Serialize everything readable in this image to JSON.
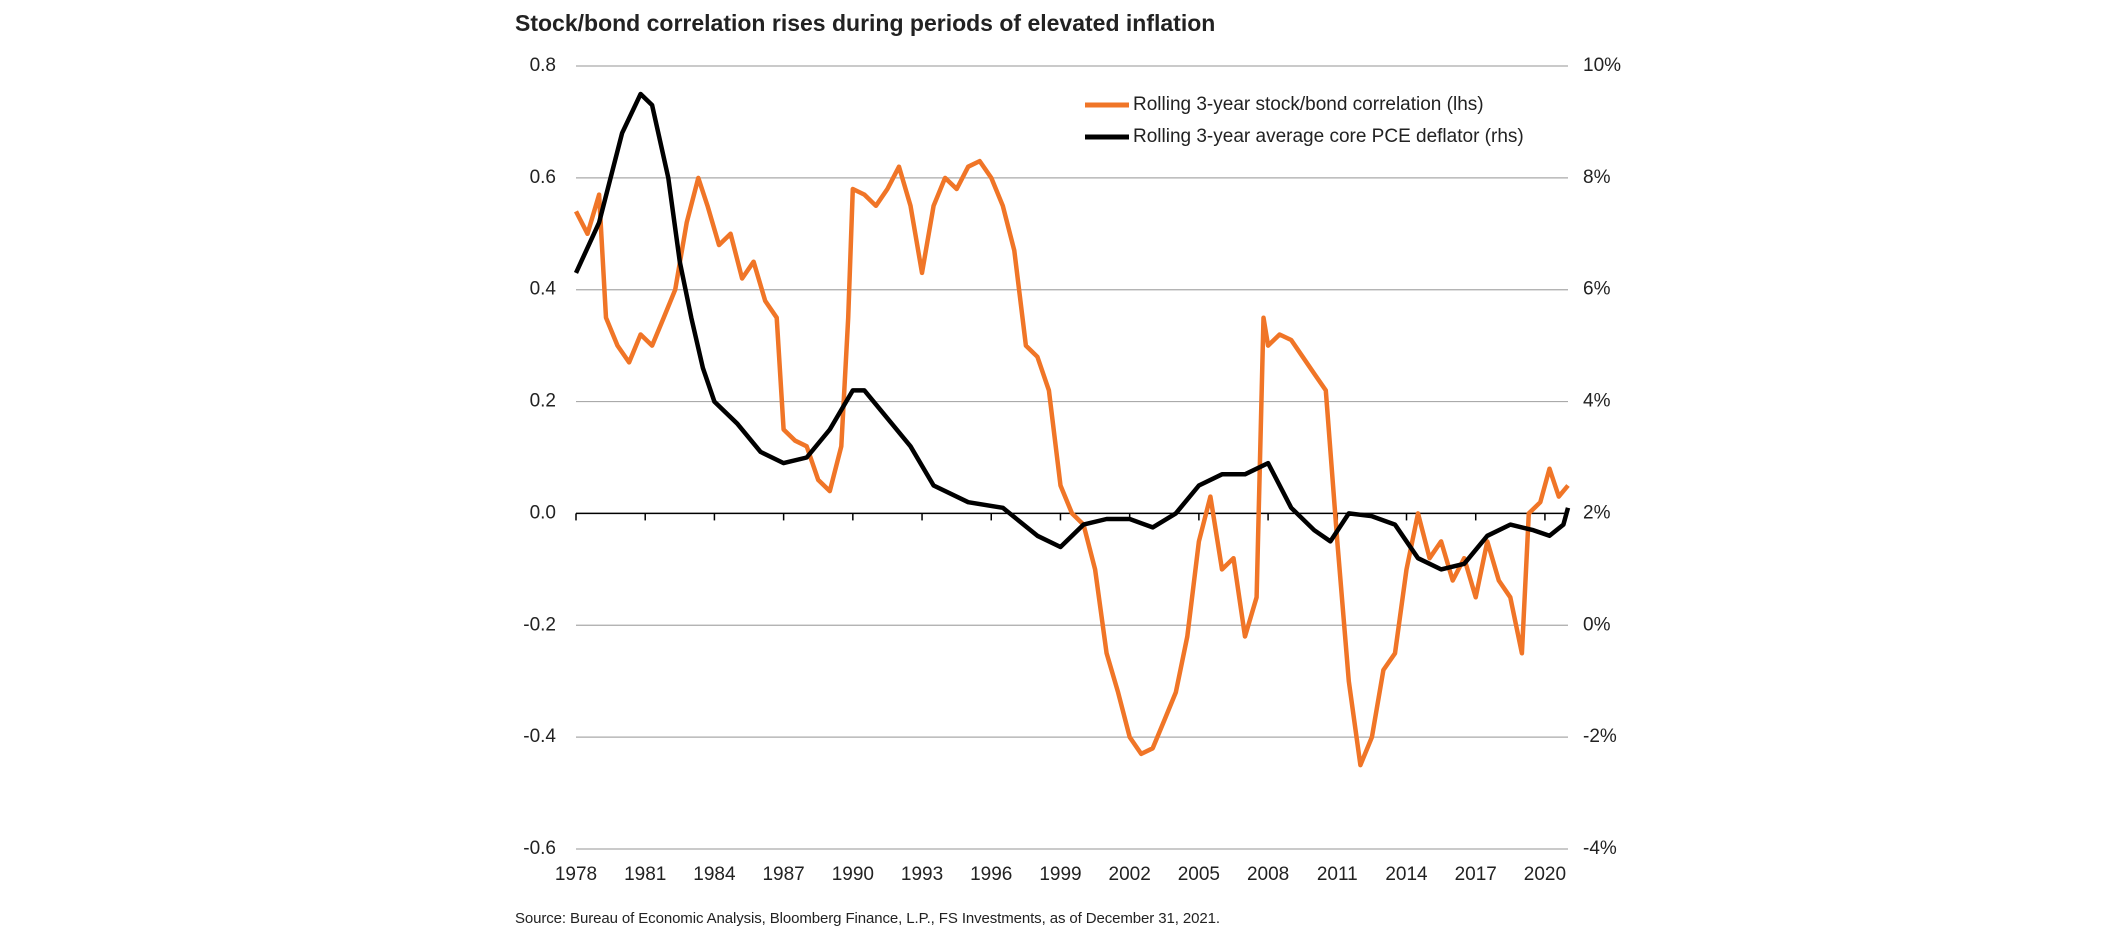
{
  "chart_data": {
    "type": "line",
    "title": "Stock/bond correlation rises during periods of elevated inflation",
    "source": "Source: Bureau of Economic Analysis, Bloomberg Finance, L.P., FS Investments, as of December 31, 2021.",
    "xlim": [
      1978,
      2021
    ],
    "xticks": [
      1978,
      1981,
      1984,
      1987,
      1990,
      1993,
      1996,
      1999,
      2002,
      2005,
      2008,
      2011,
      2014,
      2017,
      2020
    ],
    "ylim": [
      -0.6,
      0.8
    ],
    "yticks": [
      {
        "value": -0.6,
        "label": "-0.6"
      },
      {
        "value": -0.4,
        "label": "-0.4"
      },
      {
        "value": -0.2,
        "label": "-0.2"
      },
      {
        "value": 0,
        "label": "0.0"
      },
      {
        "value": 0.2,
        "label": "0.2"
      },
      {
        "value": 0.4,
        "label": "0.4"
      },
      {
        "value": 0.6,
        "label": "0.6"
      },
      {
        "value": 0.8,
        "label": "0.8"
      }
    ],
    "y2lim": [
      -4,
      10
    ],
    "y2ticks": [
      {
        "value": -4,
        "label": "-4%"
      },
      {
        "value": -2,
        "label": "-2%"
      },
      {
        "value": 0,
        "label": "0%"
      },
      {
        "value": 2,
        "label": "2%"
      },
      {
        "value": 4,
        "label": "4%"
      },
      {
        "value": 6,
        "label": "6%"
      },
      {
        "value": 8,
        "label": "8%"
      },
      {
        "value": 10,
        "label": "10%"
      }
    ],
    "grid": true,
    "legend": "upper right",
    "series": [
      {
        "name": "Rolling 3-year stock/bond correlation (lhs)",
        "color": "#f07527",
        "x": [
          1978.0,
          1978.5,
          1979.0,
          1979.3,
          1979.8,
          1980.3,
          1980.8,
          1981.3,
          1981.8,
          1982.3,
          1982.8,
          1983.3,
          1983.7,
          1984.2,
          1984.7,
          1985.2,
          1985.7,
          1986.2,
          1986.7,
          1987.0,
          1987.5,
          1988.0,
          1988.5,
          1989.0,
          1989.5,
          1989.8,
          1990.0,
          1990.5,
          1991.0,
          1991.5,
          1992.0,
          1992.5,
          1993.0,
          1993.5,
          1994.0,
          1994.5,
          1995.0,
          1995.5,
          1996.0,
          1996.5,
          1997.0,
          1997.5,
          1998.0,
          1998.5,
          1999.0,
          1999.5,
          2000.0,
          2000.5,
          2001.0,
          2001.5,
          2002.0,
          2002.5,
          2003.0,
          2003.5,
          2004.0,
          2004.5,
          2005.0,
          2005.5,
          2006.0,
          2006.5,
          2007.0,
          2007.5,
          2007.8,
          2008.0,
          2008.5,
          2009.0,
          2009.5,
          2010.0,
          2010.5,
          2011.0,
          2011.5,
          2012.0,
          2012.5,
          2013.0,
          2013.5,
          2014.0,
          2014.5,
          2015.0,
          2015.5,
          2016.0,
          2016.5,
          2017.0,
          2017.5,
          2018.0,
          2018.5,
          2019.0,
          2019.3,
          2019.8,
          2020.2,
          2020.6,
          2021.0
        ],
        "values": [
          0.54,
          0.5,
          0.57,
          0.35,
          0.3,
          0.27,
          0.32,
          0.3,
          0.35,
          0.4,
          0.52,
          0.6,
          0.55,
          0.48,
          0.5,
          0.42,
          0.45,
          0.38,
          0.35,
          0.15,
          0.13,
          0.12,
          0.06,
          0.04,
          0.12,
          0.35,
          0.58,
          0.57,
          0.55,
          0.58,
          0.62,
          0.55,
          0.43,
          0.55,
          0.6,
          0.58,
          0.62,
          0.63,
          0.6,
          0.55,
          0.47,
          0.3,
          0.28,
          0.22,
          0.05,
          0.0,
          -0.02,
          -0.1,
          -0.25,
          -0.32,
          -0.4,
          -0.43,
          -0.42,
          -0.37,
          -0.32,
          -0.22,
          -0.05,
          0.03,
          -0.1,
          -0.08,
          -0.22,
          -0.15,
          0.35,
          0.3,
          0.32,
          0.31,
          0.28,
          0.25,
          0.22,
          -0.05,
          -0.3,
          -0.45,
          -0.4,
          -0.28,
          -0.25,
          -0.1,
          0.0,
          -0.08,
          -0.05,
          -0.12,
          -0.08,
          -0.15,
          -0.05,
          -0.12,
          -0.15,
          -0.25,
          0.0,
          0.02,
          0.08,
          0.03,
          0.05
        ]
      },
      {
        "name": "Rolling 3-year average core PCE deflator (rhs)",
        "color": "#000000",
        "axis": "y2",
        "x": [
          1978.0,
          1979.0,
          1980.0,
          1980.8,
          1981.3,
          1982.0,
          1982.5,
          1983.0,
          1983.5,
          1984.0,
          1985.0,
          1986.0,
          1987.0,
          1988.0,
          1989.0,
          1990.0,
          1990.5,
          1991.5,
          1992.5,
          1993.5,
          1995.0,
          1996.5,
          1998.0,
          1999.0,
          2000.0,
          2001.0,
          2002.0,
          2003.0,
          2004.0,
          2005.0,
          2006.0,
          2007.0,
          2008.0,
          2009.0,
          2010.0,
          2010.7,
          2011.5,
          2012.5,
          2013.5,
          2014.5,
          2015.5,
          2016.5,
          2017.5,
          2018.5,
          2019.5,
          2020.2,
          2020.8,
          2021.0
        ],
        "values": [
          6.3,
          7.2,
          8.8,
          9.5,
          9.3,
          8.0,
          6.5,
          5.5,
          4.6,
          4.0,
          3.6,
          3.1,
          2.9,
          3.0,
          3.5,
          4.2,
          4.2,
          3.7,
          3.2,
          2.5,
          2.2,
          2.1,
          1.6,
          1.4,
          1.8,
          1.9,
          1.9,
          1.75,
          2.0,
          2.5,
          2.7,
          2.7,
          2.9,
          2.1,
          1.7,
          1.5,
          2.0,
          1.95,
          1.8,
          1.2,
          1.0,
          1.1,
          1.6,
          1.8,
          1.7,
          1.6,
          1.8,
          2.1
        ]
      }
    ]
  }
}
